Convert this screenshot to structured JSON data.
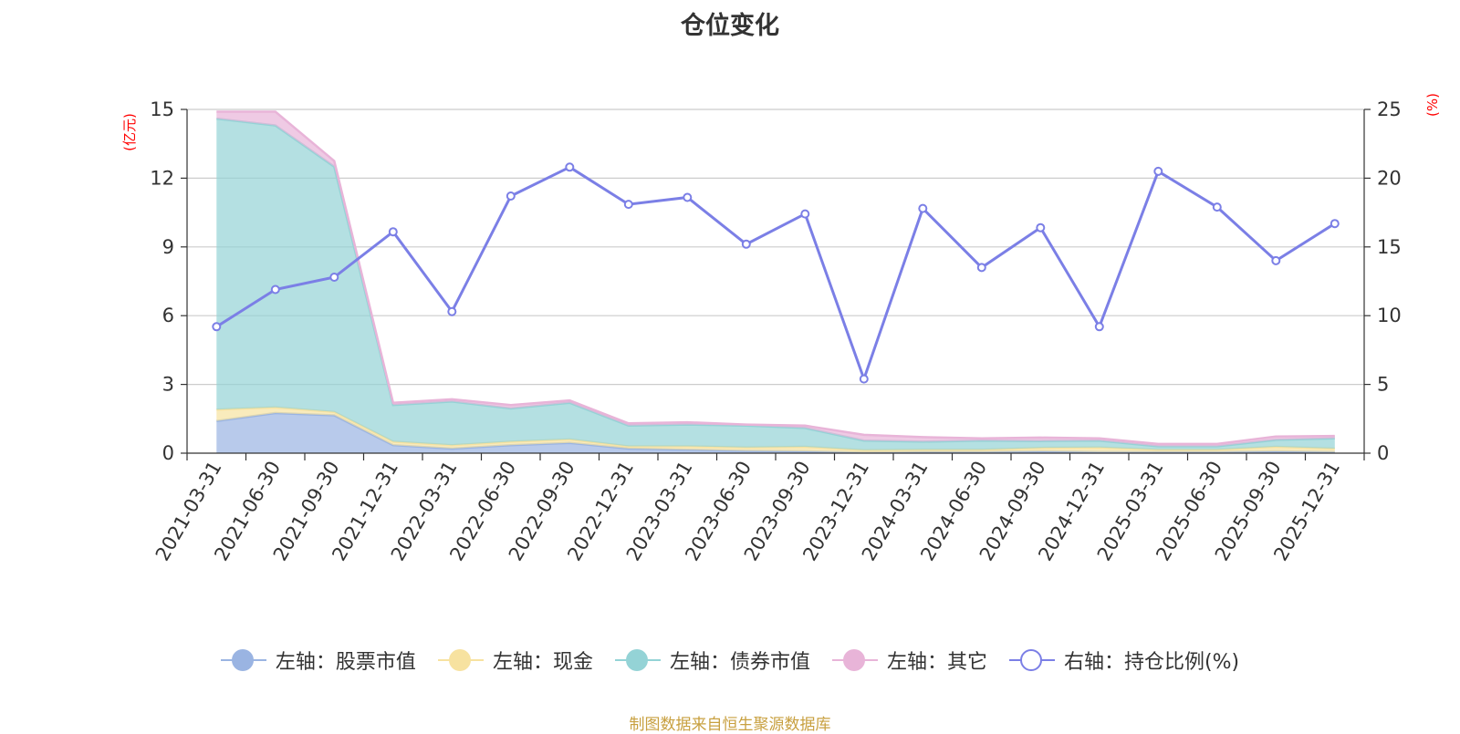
{
  "chart_data": {
    "type": "area",
    "title": "仓位变化",
    "left_axis_unit": "(亿元)",
    "right_axis_unit": "(%)",
    "categories": [
      "2021-03-31",
      "2021-06-30",
      "2021-09-30",
      "2021-12-31",
      "2022-03-31",
      "2022-06-30",
      "2022-09-30",
      "2022-12-31",
      "2023-03-31",
      "2023-06-30",
      "2023-09-30",
      "2023-12-31",
      "2024-03-31",
      "2024-06-30",
      "2024-09-30",
      "2024-12-31",
      "2025-03-31",
      "2025-06-30",
      "2025-09-30",
      "2025-12-31"
    ],
    "left_ylim": [
      0,
      15
    ],
    "left_ticks": [
      0,
      3,
      6,
      9,
      12,
      15
    ],
    "right_ylim": [
      0,
      25
    ],
    "right_ticks": [
      0,
      5,
      10,
      15,
      20,
      25
    ],
    "grid": true,
    "legend_position": "bottom",
    "series": [
      {
        "name": "左轴：股票市值",
        "axis": "left",
        "type": "stacked-area",
        "color": "#9ab4e2",
        "values": [
          1.4,
          1.75,
          1.65,
          0.35,
          0.2,
          0.35,
          0.45,
          0.2,
          0.15,
          0.1,
          0.08,
          0.03,
          0.05,
          0.05,
          0.08,
          0.05,
          0.05,
          0.05,
          0.08,
          0.05
        ]
      },
      {
        "name": "左轴：现金",
        "axis": "left",
        "type": "stacked-area",
        "color": "#f7e2a0",
        "values": [
          0.5,
          0.25,
          0.15,
          0.15,
          0.15,
          0.15,
          0.15,
          0.1,
          0.15,
          0.15,
          0.2,
          0.1,
          0.1,
          0.1,
          0.15,
          0.2,
          0.1,
          0.1,
          0.2,
          0.15
        ]
      },
      {
        "name": "左轴：债券市值",
        "axis": "left",
        "type": "stacked-area",
        "color": "#94d3d6",
        "values": [
          12.7,
          12.3,
          10.7,
          1.6,
          1.9,
          1.45,
          1.6,
          0.9,
          0.95,
          0.95,
          0.82,
          0.42,
          0.35,
          0.4,
          0.3,
          0.3,
          0.15,
          0.15,
          0.3,
          0.45
        ]
      },
      {
        "name": "左轴：其它",
        "axis": "left",
        "type": "stacked-area",
        "color": "#e8b4d8",
        "values": [
          0.3,
          0.6,
          0.25,
          0.1,
          0.1,
          0.15,
          0.1,
          0.1,
          0.1,
          0.05,
          0.1,
          0.25,
          0.2,
          0.1,
          0.15,
          0.1,
          0.1,
          0.1,
          0.15,
          0.1
        ]
      },
      {
        "name": "右轴：持仓比例(%)",
        "axis": "right",
        "type": "line",
        "color": "#7b7fe6",
        "values": [
          9.2,
          11.9,
          12.8,
          16.1,
          10.3,
          18.7,
          20.8,
          18.1,
          18.6,
          15.2,
          17.4,
          5.4,
          17.8,
          13.5,
          16.4,
          9.2,
          20.5,
          17.9,
          14.0,
          16.7
        ]
      }
    ]
  },
  "footer": {
    "source_text": "制图数据来自恒生聚源数据库"
  }
}
